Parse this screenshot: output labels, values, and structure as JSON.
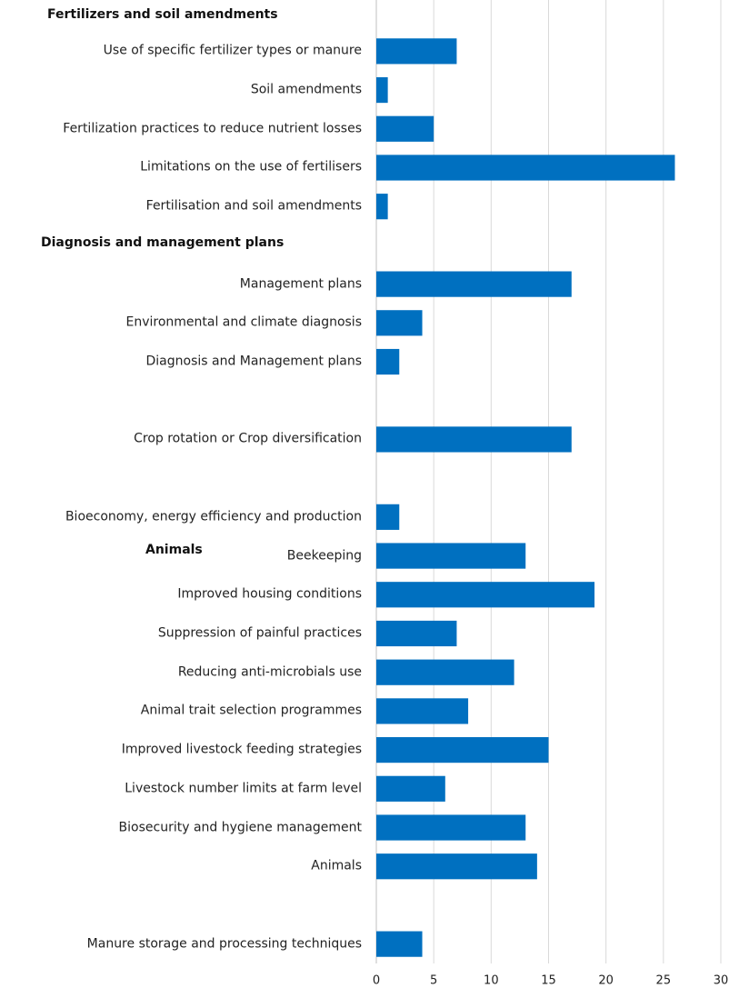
{
  "chart_data": {
    "type": "bar",
    "orientation": "horizontal",
    "categories": [
      "Use of specific fertilizer types or manure",
      "Soil amendments",
      "Fertilization practices to reduce nutrient losses",
      "Limitations on the use of fertilisers",
      "Fertilisation and soil amendments",
      null,
      "Management plans",
      "Environmental and climate diagnosis",
      "Diagnosis and Management plans",
      null,
      "Crop rotation or Crop diversification",
      null,
      "Bioeconomy, energy efficiency and production",
      "Beekeeping",
      "Improved housing conditions",
      "Suppression of painful practices",
      "Reducing anti-microbials use",
      "Animal trait selection programmes",
      "Improved livestock feeding strategies",
      "Livestock number limits at farm level",
      "Biosecurity  and hygiene management",
      "Animals",
      null,
      "Manure storage and processing techniques"
    ],
    "values": [
      7,
      1,
      5,
      26,
      1,
      null,
      17,
      4,
      2,
      null,
      17,
      null,
      2,
      13,
      19,
      7,
      12,
      8,
      15,
      6,
      13,
      14,
      null,
      4
    ],
    "color": "#0070c0",
    "annotations": [
      "Fertilizers and soil amendments",
      "Diagnosis and management plans",
      "Animals"
    ],
    "xlim": [
      0,
      30
    ],
    "xticks": [
      0,
      5,
      10,
      15,
      20,
      25,
      30
    ],
    "grid": true
  }
}
